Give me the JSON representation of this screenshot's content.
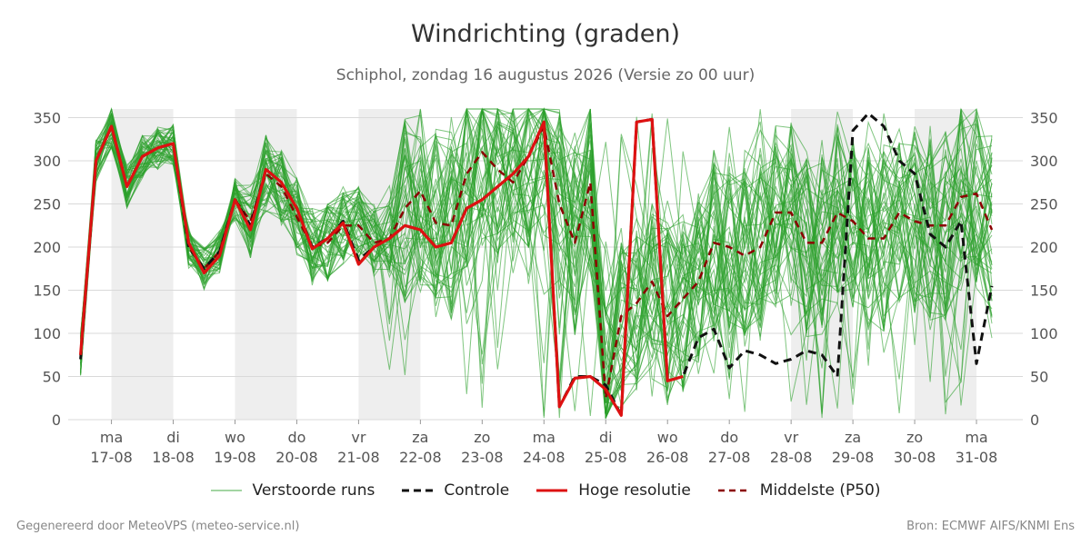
{
  "header": {
    "title": "Windrichting (graden)",
    "subtitle": "Schiphol, zondag 16 augustus 2026 (Versie zo 00 uur)"
  },
  "legend": [
    {
      "label": "Verstoorde runs",
      "color": "#2ca02c",
      "style": "thin"
    },
    {
      "label": "Controle",
      "color": "#111111",
      "style": "dashed"
    },
    {
      "label": "Hoge resolutie",
      "color": "#dd1111",
      "style": "solid"
    },
    {
      "label": "Middelste (P50)",
      "color": "#8b0000",
      "style": "dashed"
    }
  ],
  "footer": {
    "left": "Gegenereerd door MeteoVPS (meteo-service.nl)",
    "right": "Bron: ECMWF AIFS/KNMI Ens"
  },
  "chart_data": {
    "type": "line",
    "ylim": [
      0,
      360
    ],
    "yticks": [
      0,
      50,
      100,
      150,
      200,
      250,
      300,
      350
    ],
    "xlim": [
      -0.7,
      14.75
    ],
    "xticks": [
      {
        "pos": 0,
        "day": "ma",
        "date": "17-08"
      },
      {
        "pos": 1,
        "day": "di",
        "date": "18-08"
      },
      {
        "pos": 2,
        "day": "wo",
        "date": "19-08"
      },
      {
        "pos": 3,
        "day": "do",
        "date": "20-08"
      },
      {
        "pos": 4,
        "day": "vr",
        "date": "21-08"
      },
      {
        "pos": 5,
        "day": "za",
        "date": "22-08"
      },
      {
        "pos": 6,
        "day": "zo",
        "date": "23-08"
      },
      {
        "pos": 7,
        "day": "ma",
        "date": "24-08"
      },
      {
        "pos": 8,
        "day": "di",
        "date": "25-08"
      },
      {
        "pos": 9,
        "day": "wo",
        "date": "26-08"
      },
      {
        "pos": 10,
        "day": "do",
        "date": "27-08"
      },
      {
        "pos": 11,
        "day": "vr",
        "date": "28-08"
      },
      {
        "pos": 12,
        "day": "za",
        "date": "29-08"
      },
      {
        "pos": 13,
        "day": "zo",
        "date": "30-08"
      },
      {
        "pos": 14,
        "day": "ma",
        "date": "31-08"
      }
    ],
    "shaded_days": [
      [
        0,
        1
      ],
      [
        2,
        3
      ],
      [
        4,
        5
      ],
      [
        11,
        12
      ],
      [
        13,
        14
      ]
    ],
    "grid": true,
    "legend_position": "bottom",
    "x_step": 0.25,
    "x_start": -0.75,
    "controle": [
      null,
      70,
      300,
      340,
      270,
      305,
      315,
      320,
      200,
      175,
      195,
      255,
      225,
      290,
      275,
      245,
      200,
      210,
      230,
      185,
      200,
      210,
      225,
      220,
      200,
      205,
      245,
      255,
      270,
      285,
      305,
      345,
      15,
      50,
      50,
      40,
      5,
      345,
      348,
      45,
      50,
      95,
      105,
      60,
      80,
      75,
      65,
      70,
      80,
      75,
      50,
      335,
      355,
      340,
      300,
      285,
      215,
      200,
      230,
      65,
      155
    ],
    "hoge_resolutie": [
      null,
      75,
      300,
      340,
      270,
      305,
      315,
      320,
      205,
      170,
      190,
      255,
      220,
      290,
      275,
      245,
      198,
      210,
      228,
      180,
      200,
      210,
      225,
      220,
      200,
      205,
      245,
      255,
      270,
      285,
      305,
      345,
      15,
      48,
      50,
      35,
      5,
      345,
      348,
      45,
      50
    ],
    "p50": [
      null,
      75,
      300,
      340,
      270,
      305,
      315,
      320,
      200,
      175,
      195,
      255,
      230,
      285,
      270,
      235,
      200,
      205,
      225,
      225,
      205,
      210,
      245,
      265,
      228,
      225,
      285,
      310,
      290,
      275,
      305,
      340,
      250,
      205,
      275,
      25,
      120,
      135,
      160,
      120,
      140,
      160,
      205,
      200,
      190,
      200,
      240,
      240,
      205,
      205,
      240,
      230,
      210,
      210,
      240,
      230,
      225,
      225,
      258,
      262,
      220
    ]
  }
}
